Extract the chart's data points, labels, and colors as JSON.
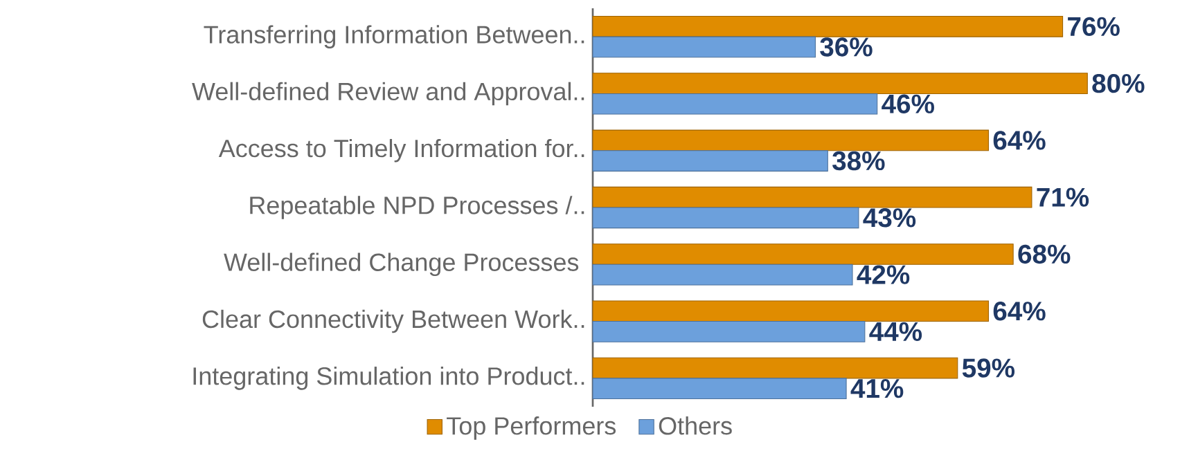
{
  "chart_data": {
    "type": "bar",
    "orientation": "horizontal",
    "categories": [
      "Transferring Information Between..",
      "Well-defined Review and Approval..",
      "Access to Timely Information for..",
      "Repeatable NPD Processes /..",
      "Well-defined Change Processes ",
      "Clear Connectivity Between Work..",
      "Integrating Simulation into Product.."
    ],
    "series": [
      {
        "name": "Top Performers",
        "color": "#e08c00",
        "values": [
          76,
          80,
          64,
          71,
          68,
          64,
          59
        ],
        "value_labels": [
          "76%",
          "80%",
          "64%",
          "71%",
          "68%",
          "64%",
          "59%"
        ]
      },
      {
        "name": "Others",
        "color": "#6ca0dc",
        "values": [
          36,
          46,
          38,
          43,
          42,
          44,
          41
        ],
        "value_labels": [
          "36%",
          "46%",
          "38%",
          "43%",
          "42%",
          "44%",
          "41%"
        ]
      }
    ],
    "legend": "bottom"
  }
}
